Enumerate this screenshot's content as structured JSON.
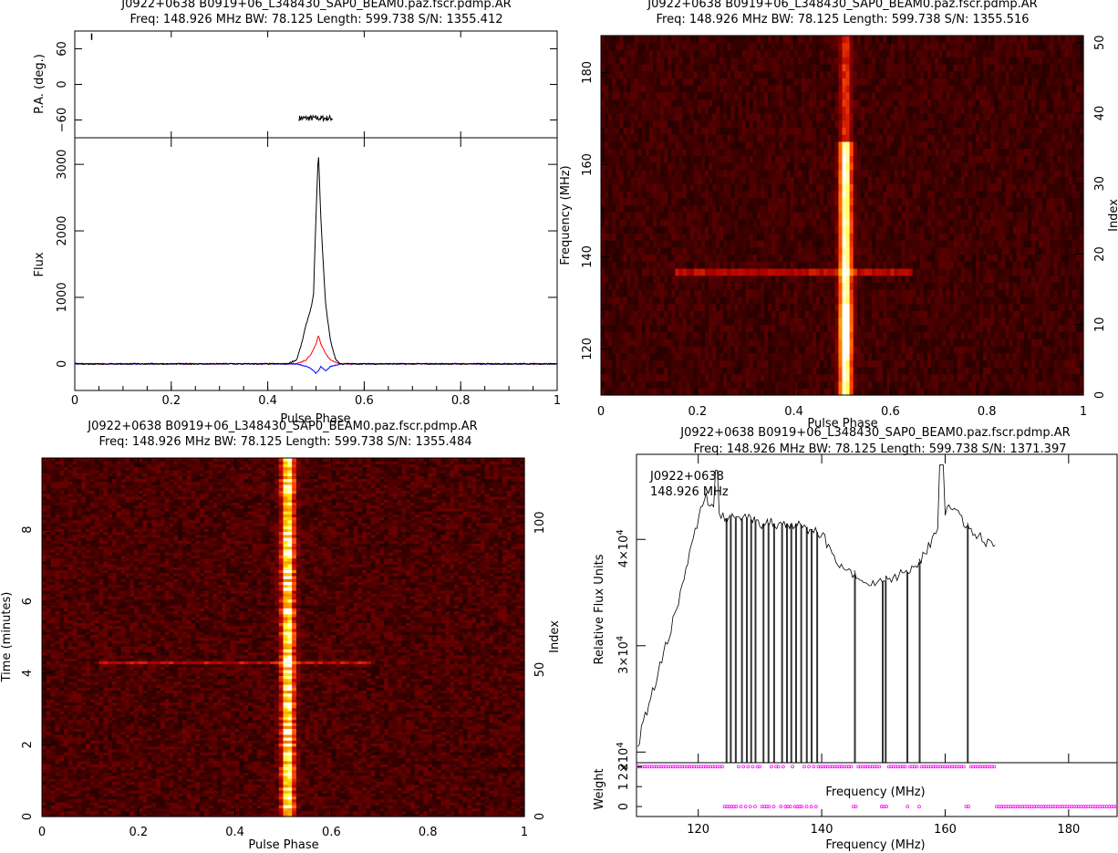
{
  "chart_data": [
    {
      "type": "line",
      "panel": "top-left",
      "title": "J0922+0638  B0919+06_L348430_SAP0_BEAM0.paz.fscr.pdmp.AR",
      "subtitle": "Freq: 148.926 MHz  BW: 78.125  Length: 599.738  S/N: 1355.412",
      "pa": {
        "ylabel": "P.A. (deg.)",
        "ylim": [
          -90,
          90
        ],
        "yticks": [
          "60",
          "0",
          "−60"
        ],
        "x_range": [
          0.465,
          0.535
        ],
        "mean_deg": -57
      },
      "profile": {
        "xlabel": "Pulse Phase",
        "ylabel": "Flux",
        "xlim": [
          0,
          1
        ],
        "ylim": [
          -400,
          3400
        ],
        "xticks": [
          "0",
          "0.2",
          "0.4",
          "0.6",
          "0.8",
          "1"
        ],
        "yticks": [
          "0",
          "1000",
          "2000",
          "3000"
        ],
        "series": [
          {
            "color": "#000000",
            "x": [
              0.0,
              0.44,
              0.46,
              0.47,
              0.48,
              0.49,
              0.495,
              0.5,
              0.505,
              0.51,
              0.515,
              0.52,
              0.53,
              0.54,
              0.55,
              1.0
            ],
            "values": [
              0,
              0,
              60,
              300,
              600,
              850,
              1050,
              2200,
              3200,
              2200,
              1500,
              900,
              350,
              80,
              0,
              0
            ]
          },
          {
            "color": "#ff0000",
            "x": [
              0.0,
              0.46,
              0.48,
              0.49,
              0.5,
              0.505,
              0.51,
              0.52,
              0.53,
              0.55,
              1.0
            ],
            "values": [
              0,
              0,
              60,
              150,
              300,
              430,
              300,
              150,
              60,
              0,
              0
            ]
          },
          {
            "color": "#0000ff",
            "x": [
              0.0,
              0.46,
              0.48,
              0.49,
              0.5,
              0.505,
              0.51,
              0.52,
              0.53,
              0.55,
              1.0
            ],
            "values": [
              0,
              0,
              -40,
              -70,
              -140,
              -110,
              -40,
              -110,
              -40,
              0,
              0
            ]
          }
        ]
      }
    },
    {
      "type": "heatmap",
      "panel": "top-right",
      "title": "J0922+0638  B0919+06_L348430_SAP0_BEAM0.paz.fscr.pdmp.AR",
      "subtitle": "Freq: 148.926 MHz  BW: 78.125  Length: 599.738  S/N: 1355.516",
      "xlabel": "Pulse Phase",
      "ylabel": "Frequency (MHz)",
      "y2label": "Index",
      "xlim": [
        0,
        1
      ],
      "ylim": [
        110,
        188
      ],
      "y2lim": [
        0,
        51
      ],
      "xticks": [
        "0",
        "0.2",
        "0.4",
        "0.6",
        "0.8",
        "1"
      ],
      "yticks": [
        "120",
        "140",
        "160",
        "180"
      ],
      "y2ticks": [
        "0",
        "10",
        "20",
        "30",
        "40",
        "50"
      ],
      "pulse_center": 0.507,
      "interference_freq_mhz": 137,
      "colormap": "heat"
    },
    {
      "type": "heatmap",
      "panel": "bottom-left",
      "title": "J0922+0638  B0919+06_L348430_SAP0_BEAM0.paz.fscr.pdmp.AR",
      "subtitle": "Freq: 148.926 MHz  BW: 78.125  Length: 599.738  S/N: 1355.484",
      "xlabel": "Pulse Phase",
      "ylabel": "Time (minutes)",
      "y2label": "Index",
      "xlim": [
        0,
        1
      ],
      "ylim": [
        0,
        10
      ],
      "y2lim": [
        0,
        122
      ],
      "xticks": [
        "0",
        "0.2",
        "0.4",
        "0.6",
        "0.8",
        "1"
      ],
      "yticks": [
        "0",
        "2",
        "4",
        "6",
        "8"
      ],
      "y2ticks": [
        "0",
        "50",
        "100"
      ],
      "pulse_center": 0.51,
      "interference_time_min": 4.3,
      "colormap": "heat"
    },
    {
      "type": "line",
      "panel": "bottom-right",
      "title": "J0922+0638  B0919+06_L348430_SAP0_BEAM0.paz.fscr.pdmp.AR",
      "subtitle": "Freq: 148.926 MHz  BW: 78.125  Length: 599.738  S/N: 1371.397",
      "annotation": [
        "J0922+0638",
        "148.926 MHz"
      ],
      "bandpass": {
        "ylabel": "Relative Flux Units",
        "xlabel": "Frequency (MHz)",
        "xlim": [
          110,
          188
        ],
        "ylim": [
          19000,
          48000
        ],
        "yticks": [
          "2×10",
          "3×10",
          "4×10"
        ],
        "ytick_values": [
          20000,
          30000,
          40000
        ],
        "ytick_exp": "4",
        "x": [
          110.2,
          111,
          112,
          113,
          114,
          115,
          116,
          117,
          118,
          119,
          120,
          121,
          122,
          123,
          124,
          126,
          128,
          130,
          132,
          134,
          136,
          138,
          140,
          142,
          144,
          146,
          148,
          150,
          152,
          154,
          156,
          158,
          159,
          160,
          161,
          162,
          164,
          166,
          168.3
        ],
        "values": [
          20500,
          22500,
          24500,
          26500,
          28500,
          30500,
          32500,
          34500,
          37000,
          39500,
          42000,
          44000,
          43500,
          42500,
          42000,
          42000,
          42000,
          41500,
          41500,
          41500,
          41500,
          41000,
          40500,
          38500,
          37000,
          36500,
          36000,
          36000,
          36500,
          37000,
          38000,
          40000,
          41500,
          42500,
          43000,
          42500,
          41000,
          40000,
          39000
        ],
        "drop_freqs": [
          124.5,
          125.2,
          126,
          127,
          127.8,
          128.5,
          129.2,
          130.5,
          131.3,
          132.2,
          133.5,
          134.3,
          135,
          135.8,
          136.6,
          137.5,
          138.3,
          139.2,
          145.3,
          149.8,
          150.3,
          153.8,
          155.8,
          163.6,
          168.3
        ]
      },
      "weight": {
        "ylabel": "Weight",
        "xlabel": "Frequency (MHz)",
        "xlim": [
          110,
          188
        ],
        "ylim": [
          -0.5,
          2.2
        ],
        "yticks": [
          "0",
          "1",
          "2"
        ],
        "xticks": [
          "120",
          "140",
          "160",
          "180"
        ],
        "zero_from": 168.5,
        "color": "#ff00ff"
      }
    }
  ]
}
